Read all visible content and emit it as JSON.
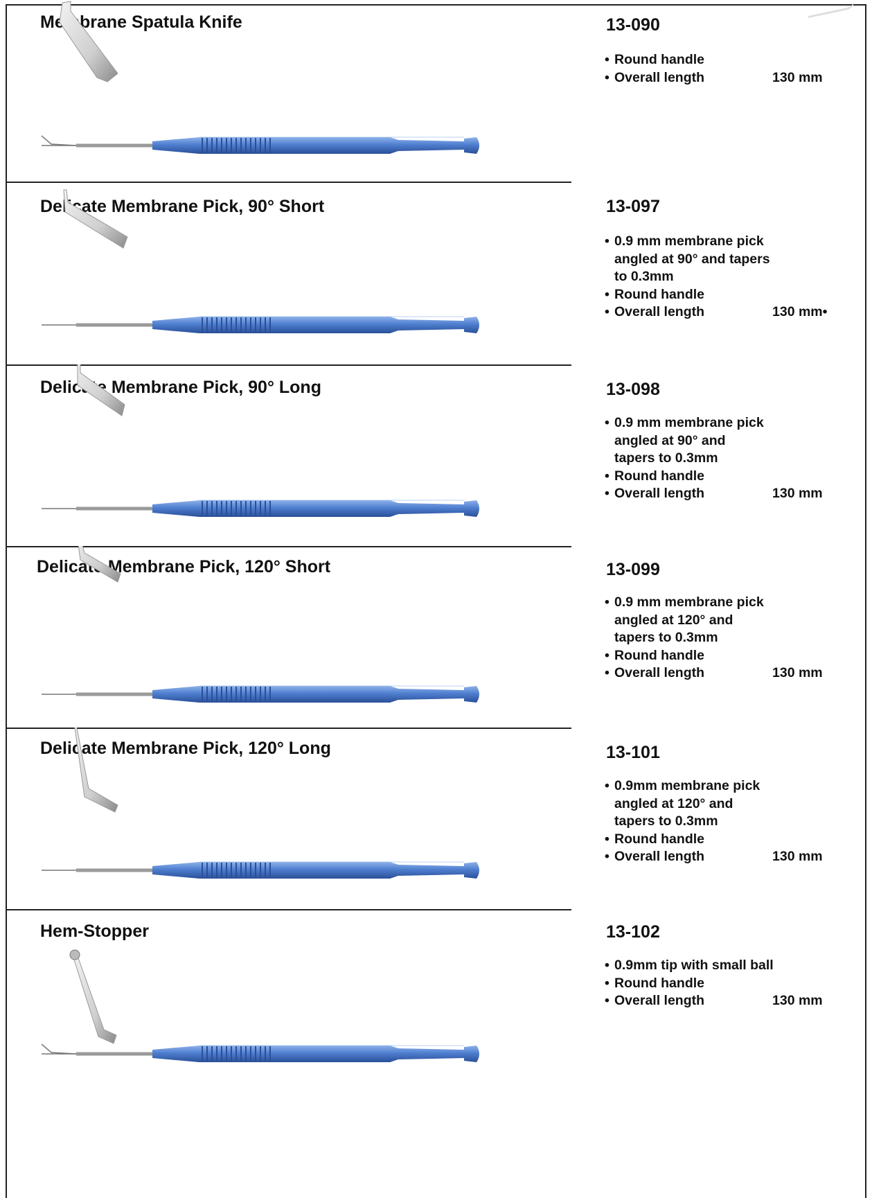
{
  "products": [
    {
      "name": "Membrane Spatula Knife",
      "code": "13-090",
      "tip": "spatula",
      "specs": [
        {
          "text": "Round  handle",
          "value": ""
        },
        {
          "text": "Overall length",
          "value": "130 mm"
        }
      ]
    },
    {
      "name": "Delicate Membrane Pick, 90° Short",
      "code": "13-097",
      "tip": "pick-90-short",
      "specs": [
        {
          "text": "0.9 mm  membrane pick",
          "value": ""
        },
        {
          "text": "angled at  90° and  tapers",
          "value": "",
          "indent": true
        },
        {
          "text": "to 0.3mm",
          "value": "",
          "indent": true
        },
        {
          "text": "Round  handle",
          "value": ""
        },
        {
          "text": "Overall length",
          "value": "130 mm•"
        }
      ]
    },
    {
      "name": "Delicate Membrane Pick, 90° Long",
      "code": "13-098",
      "tip": "pick-90-long",
      "specs": [
        {
          "text": "0.9 mm  membrane pick",
          "value": ""
        },
        {
          "text": "angled at 90° and",
          "value": "",
          "indent": true
        },
        {
          "text": "tapers to 0.3mm",
          "value": "",
          "indent": true
        },
        {
          "text": "Round  handle",
          "value": ""
        },
        {
          "text": "Overall length",
          "value": "130 mm"
        }
      ]
    },
    {
      "name": "Delicate Membrane Pick, 120° Short",
      "code": "13-099",
      "tip": "pick-120-short",
      "specs": [
        {
          "text": "0.9 mm  membrane pick",
          "value": ""
        },
        {
          "text": "angled at 120° and",
          "value": "",
          "indent": true
        },
        {
          "text": "tapers to 0.3mm",
          "value": "",
          "indent": true
        },
        {
          "text": "Round  handle",
          "value": ""
        },
        {
          "text": "Overall length",
          "value": "130 mm"
        }
      ]
    },
    {
      "name": "Delicate Membrane Pick, 120° Long",
      "code": "13-101",
      "tip": "pick-120-long",
      "specs": [
        {
          "text": "0.9mm membrane pick",
          "value": ""
        },
        {
          "text": "angled at 120° and",
          "value": "",
          "indent": true
        },
        {
          "text": "tapers to 0.3mm",
          "value": "",
          "indent": true
        },
        {
          "text": "Round  handle",
          "value": ""
        },
        {
          "text": "Overall length",
          "value": "130 mm"
        }
      ]
    },
    {
      "name": "Hem-Stopper",
      "code": "13-102",
      "tip": "ball",
      "specs": [
        {
          "text": "0.9mm  tip with small ball",
          "value": ""
        },
        {
          "text": "Round  handle",
          "value": ""
        },
        {
          "text": "Overall length",
          "value": "130 mm"
        }
      ]
    }
  ],
  "colors": {
    "handle_light": "#8fb2ea",
    "handle_mid": "#4f7fd0",
    "handle_dark": "#2a4f98",
    "steel_light": "#f2f2f2",
    "steel_dark": "#8a8a8a"
  }
}
